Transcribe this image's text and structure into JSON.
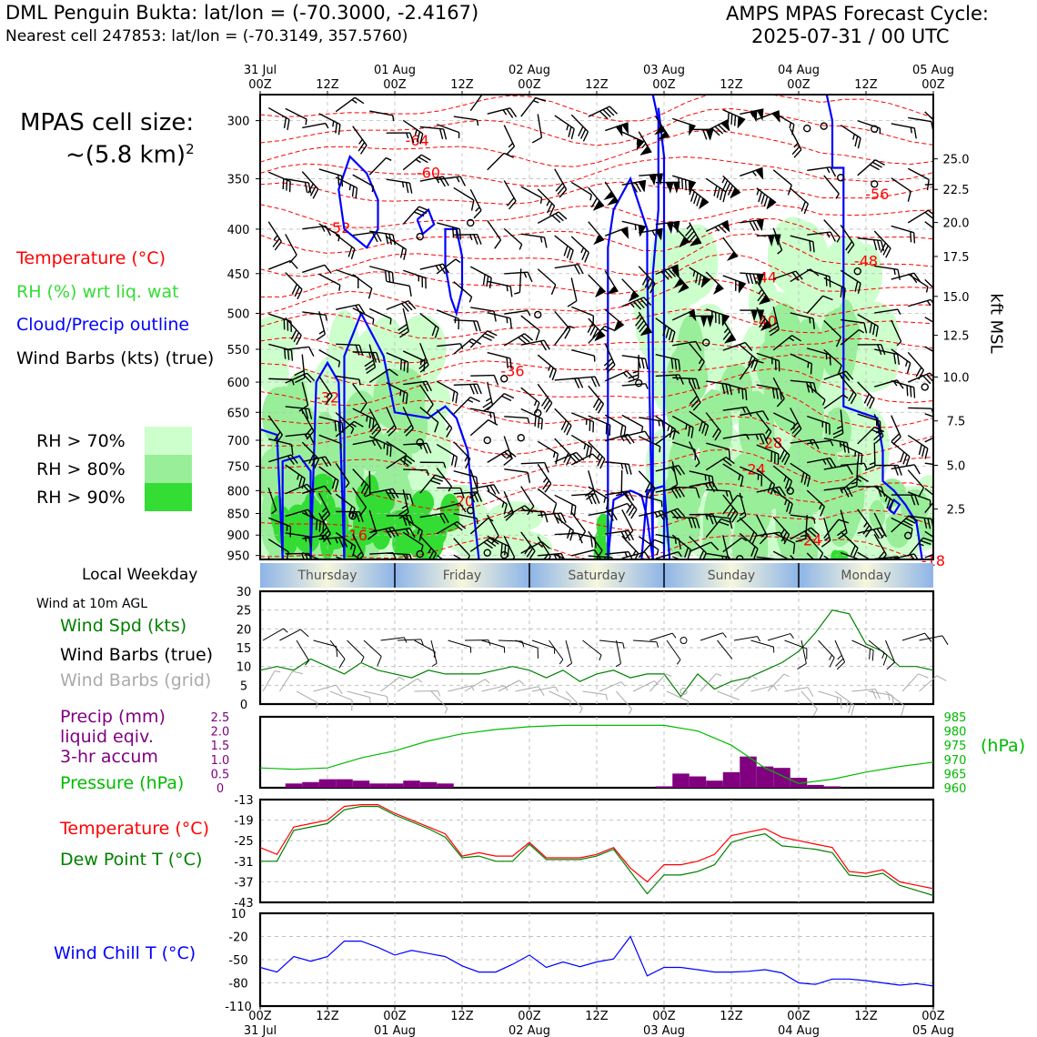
{
  "header": {
    "station_line": "DML Penguin Bukta: lat/lon = (-70.3000, -2.4167)",
    "cell_line": "Nearest cell 247853: lat/lon = (-70.3149, 357.5760)",
    "cycle_title": "AMPS MPAS Forecast Cycle:",
    "cycle_value": "2025-07-31 / 00 UTC"
  },
  "cell_size": {
    "line1": "MPAS cell size:",
    "line2": "~(5.8 km)",
    "sup": "2"
  },
  "legend": {
    "temperature": "Temperature (°C)",
    "rh": "RH (%) wrt liq. wat",
    "cloud": "Cloud/Precip outline",
    "barbs": "Wind Barbs (kts) (true)",
    "rh70": "RH > 70%",
    "rh80": "RH > 80%",
    "rh90": "RH > 90%",
    "colors": {
      "red": "#ff0000",
      "green": "#33dd33",
      "blue": "#0000ff",
      "rh70": "#ccffcc",
      "rh80": "#99ee99",
      "rh90": "#33dd33",
      "purple": "#800080",
      "pressure_green": "#00bb00",
      "dark_green": "#008000",
      "gray": "#aaaaaa"
    }
  },
  "time_axis": {
    "top_dates": [
      "31 Jul",
      "01 Aug",
      "02 Aug",
      "03 Aug",
      "04 Aug",
      "05 Aug"
    ],
    "labels": [
      "00Z",
      "12Z",
      "00Z",
      "12Z",
      "00Z",
      "12Z",
      "00Z",
      "12Z",
      "00Z",
      "12Z",
      "00Z"
    ]
  },
  "weekdays": {
    "title": "Local Weekday",
    "days": [
      "Thursday",
      "Friday",
      "Saturday",
      "Sunday",
      "Monday"
    ]
  },
  "chart_data": [
    {
      "type": "heatmap",
      "name": "upper-air",
      "y_pressure_ticks": [
        300,
        350,
        400,
        450,
        500,
        550,
        600,
        650,
        700,
        750,
        800,
        850,
        900,
        950
      ],
      "ylim": [
        960,
        280
      ],
      "right_ticks": [
        "25.0",
        "22.5",
        "20.0",
        "17.5",
        "15.0",
        "12.5",
        "10.0",
        "7.5",
        "5.0",
        "2.5"
      ],
      "right_tick_pressures": [
        332,
        360,
        393,
        430,
        478,
        530,
        592,
        665,
        748,
        840
      ],
      "right_label": "kft MSL",
      "temperature_labels": [
        {
          "t": "-64",
          "hour": 28,
          "p": 316
        },
        {
          "t": "-60",
          "hour": 30,
          "p": 344
        },
        {
          "t": "-56",
          "hour": 110,
          "p": 364
        },
        {
          "t": "-52",
          "hour": 14,
          "p": 398
        },
        {
          "t": "-48",
          "hour": 108,
          "p": 435
        },
        {
          "t": "-44",
          "hour": 90,
          "p": 454
        },
        {
          "t": "-40",
          "hour": 90,
          "p": 510
        },
        {
          "t": "-36",
          "hour": 45,
          "p": 582
        },
        {
          "t": "-32",
          "hour": 12,
          "p": 624
        },
        {
          "t": "-28",
          "hour": 91,
          "p": 704
        },
        {
          "t": "-24",
          "hour": 88,
          "p": 755
        },
        {
          "t": "-20",
          "hour": 36,
          "p": 822
        },
        {
          "t": "-16",
          "hour": 17,
          "p": 900
        },
        {
          "t": "-24",
          "hour": 98,
          "p": 912
        },
        {
          "t": "-18",
          "hour": 120,
          "p": 962
        }
      ]
    },
    {
      "type": "line",
      "name": "wind-10m",
      "title": "Wind at 10m AGL",
      "legend": [
        "Wind Spd (kts)",
        "Wind Barbs (true)",
        "Wind Barbs (grid)"
      ],
      "ylim": [
        0,
        30
      ],
      "yticks": [
        0,
        5,
        10,
        15,
        20,
        25,
        30
      ],
      "x_hours": [
        0,
        3,
        6,
        9,
        12,
        15,
        18,
        21,
        24,
        27,
        30,
        33,
        36,
        39,
        42,
        45,
        48,
        51,
        54,
        57,
        60,
        63,
        66,
        69,
        72,
        75,
        78,
        81,
        84,
        87,
        90,
        93,
        96,
        99,
        102,
        105,
        108,
        111,
        114,
        117,
        120
      ],
      "series": [
        {
          "name": "Wind Spd (kts)",
          "color": "#008000",
          "values": [
            9,
            10,
            9,
            12,
            10,
            8,
            11,
            9,
            8,
            7,
            9,
            8,
            8,
            8,
            9,
            10,
            9,
            7,
            9,
            6,
            8,
            9,
            7,
            8,
            8,
            2,
            8,
            4,
            6,
            7,
            9,
            11,
            14,
            19,
            25,
            24,
            16,
            14,
            10,
            10,
            9
          ]
        }
      ]
    },
    {
      "type": "bar",
      "name": "precip-pressure",
      "legend": [
        "Precip (mm)",
        "liquid eqiv.",
        "3-hr accum",
        "Pressure (hPa)"
      ],
      "ylim": [
        0,
        2.5
      ],
      "yticks": [
        "0",
        "0.5",
        "1.0",
        "1.5",
        "2.0",
        "2.5"
      ],
      "right_ylim": [
        960,
        985
      ],
      "right_yticks": [
        "960",
        "965",
        "970",
        "975",
        "980",
        "985"
      ],
      "right_label": "(hPa)",
      "x_hours": [
        6,
        9,
        12,
        15,
        18,
        21,
        24,
        27,
        30,
        33,
        72,
        75,
        78,
        81,
        84,
        87,
        90,
        93,
        96,
        99,
        102
      ],
      "precip": [
        0.15,
        0.2,
        0.3,
        0.3,
        0.25,
        0.15,
        0.15,
        0.25,
        0.2,
        0.15,
        0.05,
        0.5,
        0.4,
        0.25,
        0.55,
        1.1,
        0.75,
        0.7,
        0.35,
        0.1,
        0.05
      ],
      "pressure_hours": [
        0,
        6,
        12,
        18,
        24,
        30,
        36,
        42,
        48,
        54,
        60,
        66,
        72,
        78,
        84,
        90,
        96,
        102,
        108,
        114,
        120
      ],
      "pressure": [
        967,
        966.5,
        967,
        970.5,
        973,
        976.5,
        979,
        980.5,
        981.5,
        982,
        982,
        982,
        982,
        980,
        975,
        967,
        961.5,
        963,
        965.5,
        967.5,
        969
      ]
    },
    {
      "type": "line",
      "name": "temperature-dewpoint",
      "legend": [
        "Temperature (°C)",
        "Dew Point T (°C)"
      ],
      "ylim": [
        -43,
        -13
      ],
      "yticks": [
        "-13",
        "-19",
        "-25",
        "-31",
        "-37",
        "-43"
      ],
      "x_hours": [
        0,
        3,
        6,
        9,
        12,
        15,
        18,
        21,
        24,
        27,
        30,
        33,
        36,
        39,
        42,
        45,
        48,
        51,
        54,
        57,
        60,
        63,
        66,
        69,
        72,
        75,
        78,
        81,
        84,
        87,
        90,
        93,
        96,
        99,
        102,
        105,
        108,
        111,
        114,
        117,
        120
      ],
      "series": [
        {
          "name": "Temperature (°C)",
          "color": "#ff0000",
          "values": [
            -27,
            -29,
            -21,
            -20,
            -19,
            -15,
            -14.5,
            -14.5,
            -17,
            -19,
            -21,
            -23,
            -29.5,
            -28.5,
            -29.5,
            -29.5,
            -25.5,
            -30,
            -30,
            -30,
            -29,
            -27,
            -33,
            -37,
            -32,
            -32,
            -31,
            -29,
            -23.5,
            -22.5,
            -21.5,
            -24,
            -25,
            -26,
            -27,
            -34,
            -34.5,
            -33.5,
            -37,
            -38,
            -39
          ]
        },
        {
          "name": "Dew Point T (°C)",
          "color": "#008000",
          "values": [
            -31,
            -31,
            -22,
            -21,
            -20,
            -16,
            -15,
            -15,
            -17.5,
            -19.5,
            -21.5,
            -24,
            -30,
            -29.5,
            -31,
            -31,
            -26,
            -30.5,
            -30.5,
            -30.5,
            -29.5,
            -27.5,
            -34,
            -40.5,
            -35,
            -35,
            -34,
            -32,
            -25.5,
            -24,
            -23,
            -26.5,
            -27,
            -27.5,
            -28.5,
            -35,
            -35.5,
            -34.5,
            -38,
            -39.5,
            -41
          ]
        }
      ]
    },
    {
      "type": "line",
      "name": "wind-chill",
      "legend": [
        "Wind Chill T (°C)"
      ],
      "ylim": [
        -110,
        10
      ],
      "yticks": [
        "10",
        "-20",
        "-50",
        "-80",
        "-110"
      ],
      "x_hours": [
        0,
        3,
        6,
        9,
        12,
        15,
        18,
        21,
        24,
        27,
        30,
        33,
        36,
        39,
        42,
        45,
        48,
        51,
        54,
        57,
        60,
        63,
        66,
        69,
        72,
        75,
        78,
        81,
        84,
        87,
        90,
        93,
        96,
        99,
        102,
        105,
        108,
        111,
        114,
        117,
        120
      ],
      "series": [
        {
          "name": "Wind Chill T (°C)",
          "color": "#0000ff",
          "values": [
            -60,
            -66,
            -46,
            -52,
            -46,
            -26,
            -26,
            -34,
            -44,
            -38,
            -42,
            -46,
            -58,
            -66,
            -66,
            -56,
            -44,
            -60,
            -53,
            -59,
            -53,
            -49,
            -20,
            -71,
            -60,
            -60,
            -63,
            -66,
            -66,
            -65,
            -63,
            -67,
            -80,
            -82,
            -75,
            -75,
            -77,
            -80,
            -83,
            -81,
            -84
          ]
        }
      ]
    }
  ]
}
